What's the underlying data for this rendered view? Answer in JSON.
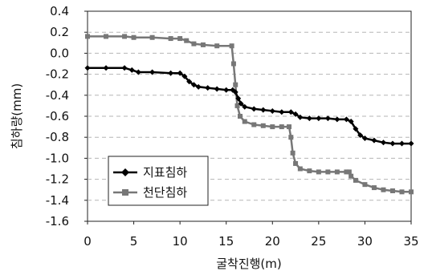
{
  "chart_data": {
    "type": "line",
    "title": "",
    "xlabel": "굴착진행(m)",
    "ylabel": "침하량(mm)",
    "xlim": [
      0,
      35
    ],
    "ylim": [
      -1.6,
      0.4
    ],
    "xticks": [
      "0",
      "5",
      "10",
      "15",
      "20",
      "25",
      "30",
      "35"
    ],
    "yticks": [
      "0.4",
      "0.2",
      "0.0",
      "-0.2",
      "-0.4",
      "-0.6",
      "-0.8",
      "-1.0",
      "-1.2",
      "-1.4",
      "-1.6"
    ],
    "grid": "horizontal dashed",
    "legend_position": "bottom-left",
    "series": [
      {
        "name": "지표침하",
        "color": "#000000",
        "marker": "diamond",
        "points": [
          [
            0,
            -0.14
          ],
          [
            2,
            -0.14
          ],
          [
            4,
            -0.14
          ],
          [
            4.8,
            -0.16
          ],
          [
            5.5,
            -0.18
          ],
          [
            7,
            -0.18
          ],
          [
            9,
            -0.19
          ],
          [
            10,
            -0.19
          ],
          [
            10.5,
            -0.22
          ],
          [
            11,
            -0.27
          ],
          [
            11.5,
            -0.3
          ],
          [
            12,
            -0.32
          ],
          [
            13,
            -0.33
          ],
          [
            14,
            -0.34
          ],
          [
            15,
            -0.35
          ],
          [
            15.7,
            -0.35
          ],
          [
            16,
            -0.37
          ],
          [
            16.3,
            -0.43
          ],
          [
            16.6,
            -0.48
          ],
          [
            17,
            -0.51
          ],
          [
            18,
            -0.53
          ],
          [
            19,
            -0.54
          ],
          [
            20,
            -0.55
          ],
          [
            21,
            -0.56
          ],
          [
            22,
            -0.56
          ],
          [
            22.5,
            -0.58
          ],
          [
            23,
            -0.61
          ],
          [
            24,
            -0.62
          ],
          [
            25,
            -0.62
          ],
          [
            26,
            -0.62
          ],
          [
            27,
            -0.63
          ],
          [
            28,
            -0.63
          ],
          [
            28.5,
            -0.65
          ],
          [
            29,
            -0.72
          ],
          [
            29.5,
            -0.78
          ],
          [
            30,
            -0.81
          ],
          [
            31,
            -0.83
          ],
          [
            32,
            -0.85
          ],
          [
            33,
            -0.86
          ],
          [
            34,
            -0.86
          ],
          [
            35,
            -0.86
          ]
        ]
      },
      {
        "name": "천단침하",
        "color": "#777777",
        "marker": "square",
        "points": [
          [
            0,
            0.16
          ],
          [
            2,
            0.16
          ],
          [
            4,
            0.16
          ],
          [
            5,
            0.15
          ],
          [
            7,
            0.15
          ],
          [
            9,
            0.14
          ],
          [
            10,
            0.14
          ],
          [
            10.7,
            0.12
          ],
          [
            11.5,
            0.09
          ],
          [
            12.5,
            0.08
          ],
          [
            14,
            0.07
          ],
          [
            15.6,
            0.07
          ],
          [
            15.8,
            -0.1
          ],
          [
            16,
            -0.3
          ],
          [
            16.2,
            -0.5
          ],
          [
            16.5,
            -0.6
          ],
          [
            17,
            -0.65
          ],
          [
            18,
            -0.68
          ],
          [
            19,
            -0.69
          ],
          [
            20,
            -0.7
          ],
          [
            21,
            -0.7
          ],
          [
            21.8,
            -0.7
          ],
          [
            22,
            -0.8
          ],
          [
            22.2,
            -0.95
          ],
          [
            22.5,
            -1.05
          ],
          [
            23,
            -1.1
          ],
          [
            24,
            -1.12
          ],
          [
            25,
            -1.13
          ],
          [
            26,
            -1.13
          ],
          [
            27,
            -1.13
          ],
          [
            28,
            -1.13
          ],
          [
            28.3,
            -1.13
          ],
          [
            28.5,
            -1.17
          ],
          [
            29,
            -1.21
          ],
          [
            30,
            -1.25
          ],
          [
            31,
            -1.28
          ],
          [
            32,
            -1.3
          ],
          [
            33,
            -1.31
          ],
          [
            34,
            -1.32
          ],
          [
            35,
            -1.32
          ]
        ]
      }
    ]
  }
}
